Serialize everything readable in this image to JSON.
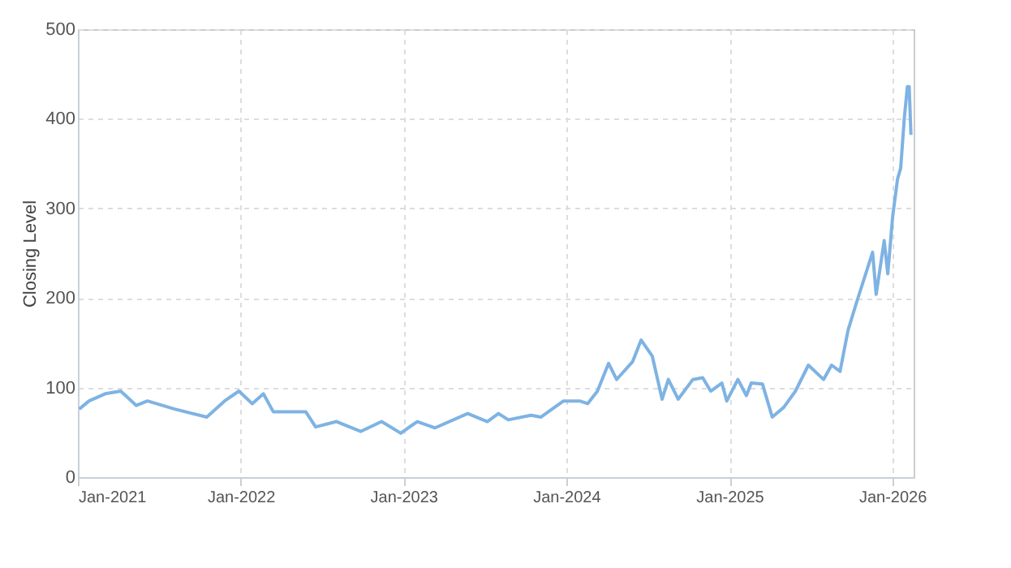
{
  "chart_data": {
    "type": "line",
    "ylabel": "Closing Level",
    "x": [
      "2021-01-04",
      "2021-01-26",
      "2021-03-03",
      "2021-04-07",
      "2021-05-12",
      "2021-06-06",
      "2021-08-06",
      "2021-10-17",
      "2021-11-26",
      "2021-12-28",
      "2022-01-27",
      "2022-02-21",
      "2022-03-15",
      "2022-05-27",
      "2022-06-18",
      "2022-08-04",
      "2022-09-27",
      "2022-11-13",
      "2022-12-26",
      "2023-02-01",
      "2023-03-13",
      "2023-05-25",
      "2023-07-08",
      "2023-08-02",
      "2023-08-24",
      "2023-10-14",
      "2023-11-05",
      "2023-12-26",
      "2024-01-31",
      "2024-02-18",
      "2024-03-11",
      "2024-04-05",
      "2024-04-23",
      "2024-05-29",
      "2024-06-17",
      "2024-07-12",
      "2024-08-03",
      "2024-08-17",
      "2024-09-08",
      "2024-10-11",
      "2024-11-02",
      "2024-11-20",
      "2024-12-15",
      "2024-12-26",
      "2025-01-20",
      "2025-02-08",
      "2025-02-19",
      "2025-03-16",
      "2025-04-07",
      "2025-05-03",
      "2025-05-29",
      "2025-06-27",
      "2025-07-31",
      "2025-08-18",
      "2025-09-06",
      "2025-09-24",
      "2025-10-13",
      "2025-11-18",
      "2025-11-26",
      "2025-12-14",
      "2025-12-22",
      "2026-01-02",
      "2026-01-13",
      "2026-01-20",
      "2026-01-28",
      "2026-02-04",
      "2026-02-08",
      "2026-02-12"
    ],
    "series": [
      {
        "color": "#7eb3e3",
        "values": [
          76,
          85,
          93,
          96,
          80,
          85,
          76,
          67,
          85,
          96,
          82,
          93,
          73,
          73,
          56,
          62,
          51,
          62,
          49,
          62,
          55,
          71,
          62,
          71,
          64,
          69,
          67,
          85,
          85,
          82,
          96,
          127,
          109,
          129,
          153,
          135,
          87,
          109,
          87,
          109,
          111,
          96,
          105,
          85,
          109,
          91,
          105,
          104,
          67,
          78,
          96,
          125,
          109,
          125,
          118,
          164,
          195,
          251,
          204,
          264,
          227,
          291,
          333,
          345,
          400,
          436,
          436,
          382
        ]
      }
    ],
    "xlim": [
      "2021-01-01",
      "2026-02-18"
    ],
    "xticks": [
      {
        "value": "2021-01-01",
        "label": "Jan-2021"
      },
      {
        "value": "2022-01-01",
        "label": "Jan-2022"
      },
      {
        "value": "2023-01-01",
        "label": "Jan-2023"
      },
      {
        "value": "2024-01-01",
        "label": "Jan-2024"
      },
      {
        "value": "2025-01-01",
        "label": "Jan-2025"
      },
      {
        "value": "2026-01-01",
        "label": "Jan-2026"
      }
    ],
    "ylim": [
      0,
      500
    ],
    "yticks": [
      0,
      100,
      200,
      300,
      400,
      500
    ],
    "grid": true,
    "line_style": "solid",
    "marker": "none"
  }
}
